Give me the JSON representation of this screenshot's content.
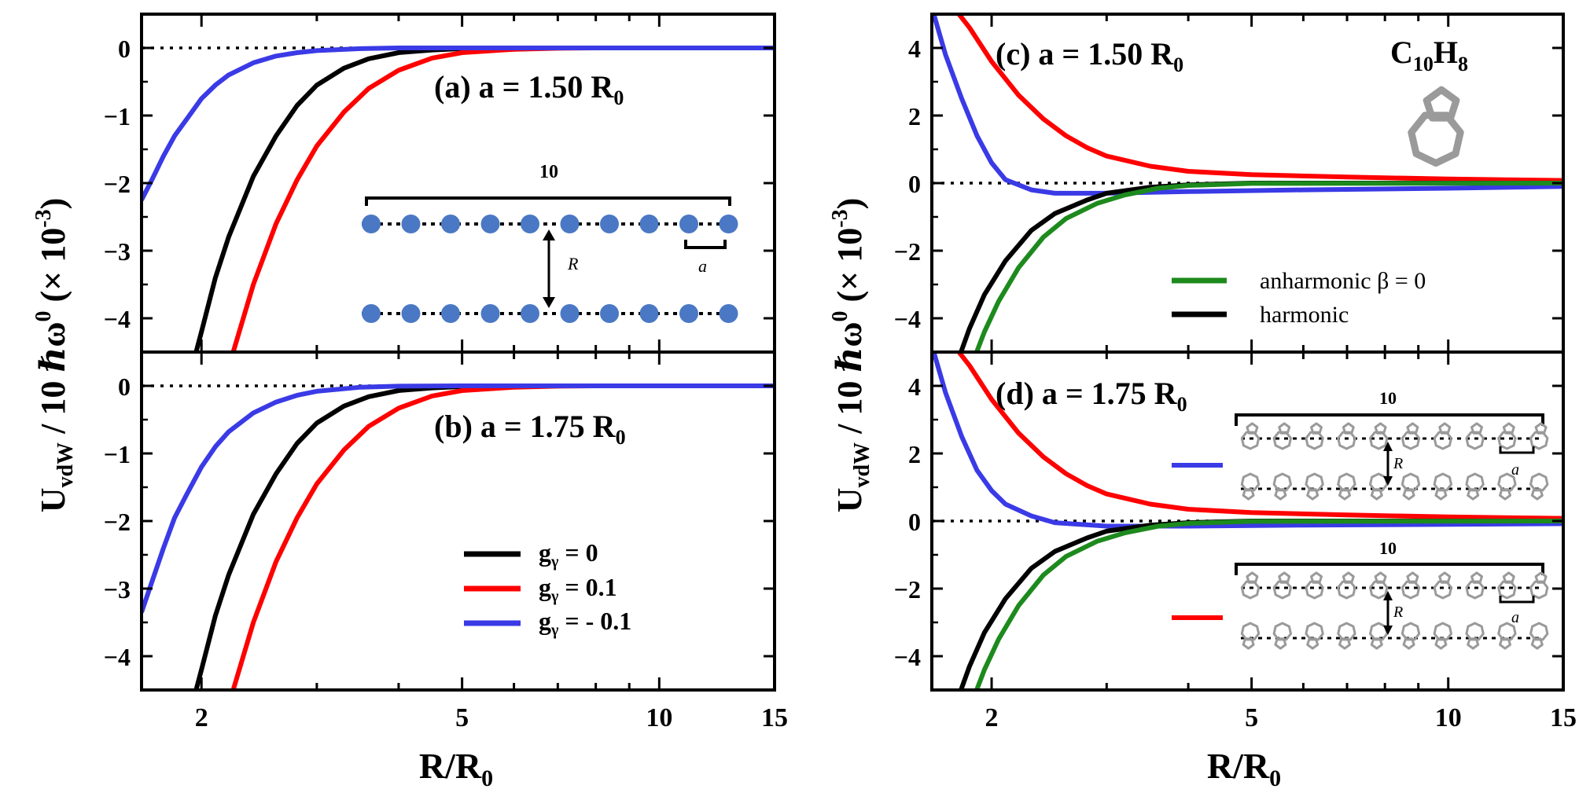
{
  "figure": {
    "y_axis_label": {
      "main": "U",
      "sub": "vdW",
      "rest": " / 10 ℏω",
      "sup0": "0",
      "scale": " (× 10",
      "sup": "-3",
      "close": ")"
    },
    "x_axis_label": {
      "main": "R/R",
      "sub": "0"
    }
  },
  "colors": {
    "black": "#000000",
    "red": "#ff0000",
    "blue": "#3a3ae6",
    "green": "#1d8a1d",
    "dot": "#4a78c4",
    "molecule": "#9a9a9a"
  },
  "chart_data": [
    {
      "id": "a",
      "type": "line",
      "x_scale": "log",
      "xlim": [
        1.62,
        15
      ],
      "ylim": [
        -4.5,
        0.5
      ],
      "yticks": [
        0,
        -1,
        -2,
        -3,
        -4
      ],
      "ytick_labels": [
        "0",
        "−1",
        "−2",
        "−3",
        "−4"
      ],
      "xticks": [
        2,
        5,
        10,
        15
      ],
      "xtick_labels": [],
      "title": {
        "main": "(a) a = 1.50 R",
        "sub": "0"
      },
      "series": [
        {
          "name": "gγ = 0",
          "color": "#000000",
          "x": [
            1.95,
            2.0,
            2.1,
            2.2,
            2.4,
            2.6,
            2.8,
            3.0,
            3.3,
            3.6,
            4.0,
            4.5,
            5.0,
            6.0,
            8.0,
            10.0,
            15.0
          ],
          "y": [
            -4.6,
            -4.2,
            -3.4,
            -2.8,
            -1.9,
            -1.3,
            -0.85,
            -0.55,
            -0.3,
            -0.16,
            -0.07,
            -0.03,
            -0.01,
            0,
            0,
            0,
            0
          ]
        },
        {
          "name": "gγ = 0.1",
          "color": "#ff0000",
          "x": [
            2.22,
            2.3,
            2.4,
            2.6,
            2.8,
            3.0,
            3.3,
            3.6,
            4.0,
            4.5,
            5.0,
            6.0,
            7.0,
            8.0,
            10.0,
            15.0
          ],
          "y": [
            -4.6,
            -4.1,
            -3.5,
            -2.6,
            -1.95,
            -1.45,
            -0.95,
            -0.6,
            -0.33,
            -0.15,
            -0.07,
            -0.02,
            -0.005,
            0,
            0,
            0
          ]
        },
        {
          "name": "gγ = -0.1",
          "color": "#3a3ae6",
          "x": [
            1.62,
            1.68,
            1.75,
            1.82,
            1.9,
            2.0,
            2.1,
            2.2,
            2.4,
            2.6,
            2.8,
            3.0,
            3.5,
            4.0,
            5.0,
            6.0,
            15.0
          ],
          "y": [
            -2.25,
            -1.95,
            -1.6,
            -1.3,
            -1.05,
            -0.75,
            -0.55,
            -0.4,
            -0.22,
            -0.12,
            -0.07,
            -0.04,
            -0.01,
            0,
            0,
            0,
            0
          ]
        }
      ]
    },
    {
      "id": "b",
      "type": "line",
      "x_scale": "log",
      "xlim": [
        1.62,
        15
      ],
      "ylim": [
        -4.5,
        0.5
      ],
      "yticks": [
        0,
        -1,
        -2,
        -3,
        -4
      ],
      "ytick_labels": [
        "0",
        "−1",
        "−2",
        "−3",
        "−4"
      ],
      "xticks": [
        2,
        5,
        10,
        15
      ],
      "xtick_labels": [
        "2",
        "5",
        "10",
        "15"
      ],
      "title": {
        "main": "(b) a = 1.75 R",
        "sub": "0"
      },
      "series": [
        {
          "name": "gγ = 0",
          "color": "#000000",
          "x": [
            1.95,
            2.0,
            2.1,
            2.2,
            2.4,
            2.6,
            2.8,
            3.0,
            3.3,
            3.6,
            4.0,
            4.5,
            5.0,
            6.0,
            8.0,
            10.0,
            15.0
          ],
          "y": [
            -4.6,
            -4.2,
            -3.4,
            -2.8,
            -1.9,
            -1.3,
            -0.85,
            -0.55,
            -0.3,
            -0.16,
            -0.07,
            -0.03,
            -0.01,
            0,
            0,
            0,
            0
          ]
        },
        {
          "name": "gγ = 0.1",
          "color": "#ff0000",
          "x": [
            2.22,
            2.3,
            2.4,
            2.6,
            2.8,
            3.0,
            3.3,
            3.6,
            4.0,
            4.5,
            5.0,
            6.0,
            7.0,
            8.0,
            10.0,
            15.0
          ],
          "y": [
            -4.6,
            -4.1,
            -3.5,
            -2.6,
            -1.95,
            -1.45,
            -0.95,
            -0.6,
            -0.33,
            -0.15,
            -0.07,
            -0.02,
            -0.005,
            0,
            0,
            0
          ]
        },
        {
          "name": "gγ = -0.1",
          "color": "#3a3ae6",
          "x": [
            1.62,
            1.68,
            1.75,
            1.82,
            1.9,
            2.0,
            2.1,
            2.2,
            2.4,
            2.6,
            2.8,
            3.0,
            3.5,
            4.0,
            5.0,
            6.0,
            15.0
          ],
          "y": [
            -3.35,
            -2.9,
            -2.4,
            -1.95,
            -1.6,
            -1.2,
            -0.9,
            -0.68,
            -0.4,
            -0.24,
            -0.14,
            -0.08,
            -0.02,
            -0.005,
            0,
            0,
            0
          ]
        }
      ],
      "legend": [
        {
          "label": "g",
          "sub": "γ",
          "value": " = 0",
          "color": "#000000"
        },
        {
          "label": "g",
          "sub": "γ",
          "value": " = 0.1",
          "color": "#ff0000"
        },
        {
          "label": "g",
          "sub": "γ",
          "value": " = - 0.1",
          "color": "#3a3ae6"
        }
      ]
    },
    {
      "id": "c",
      "type": "line",
      "x_scale": "log",
      "xlim": [
        1.62,
        15
      ],
      "ylim": [
        -5,
        5
      ],
      "yticks": [
        4,
        2,
        0,
        -2,
        -4
      ],
      "ytick_labels": [
        "4",
        "2",
        "0",
        "−2",
        "−4"
      ],
      "xticks": [
        2,
        5,
        10,
        15
      ],
      "xtick_labels": [],
      "title": {
        "main": "(c) a = 1.50 R",
        "sub": "0"
      },
      "molecule": {
        "main": "C",
        "sub1": "10",
        "mid": "H",
        "sub2": "8"
      },
      "series": [
        {
          "name": "red",
          "color": "#ff0000",
          "x": [
            1.75,
            1.85,
            2.0,
            2.2,
            2.4,
            2.6,
            2.8,
            3.0,
            3.5,
            4.0,
            5.0,
            7.0,
            10.0,
            15.0
          ],
          "y": [
            5.2,
            4.6,
            3.6,
            2.6,
            1.9,
            1.4,
            1.05,
            0.8,
            0.5,
            0.35,
            0.25,
            0.18,
            0.12,
            0.08
          ]
        },
        {
          "name": "blue",
          "color": "#3a3ae6",
          "x": [
            1.62,
            1.7,
            1.8,
            1.9,
            2.0,
            2.1,
            2.3,
            2.5,
            3.0,
            4.0,
            6.0,
            10.0,
            15.0
          ],
          "y": [
            5.2,
            3.8,
            2.5,
            1.4,
            0.6,
            0.1,
            -0.2,
            -0.3,
            -0.3,
            -0.25,
            -0.2,
            -0.15,
            -0.1
          ]
        },
        {
          "name": "harmonic",
          "color": "#000000",
          "x": [
            1.78,
            1.85,
            1.95,
            2.1,
            2.3,
            2.5,
            2.8,
            3.0,
            3.5,
            4.0,
            5.0,
            15.0
          ],
          "y": [
            -5.2,
            -4.3,
            -3.3,
            -2.3,
            -1.4,
            -0.9,
            -0.5,
            -0.3,
            -0.12,
            -0.05,
            0,
            0
          ]
        },
        {
          "name": "anharmonic β = 0",
          "color": "#1d8a1d",
          "x": [
            1.88,
            1.95,
            2.05,
            2.2,
            2.4,
            2.6,
            2.9,
            3.2,
            3.6,
            4.0,
            5.0,
            15.0
          ],
          "y": [
            -5.2,
            -4.4,
            -3.5,
            -2.5,
            -1.6,
            -1.05,
            -0.6,
            -0.35,
            -0.15,
            -0.07,
            -0.01,
            0
          ]
        }
      ],
      "legend": [
        {
          "label": "anharmonic β = 0",
          "color": "#1d8a1d"
        },
        {
          "label": "harmonic",
          "color": "#000000"
        }
      ]
    },
    {
      "id": "d",
      "type": "line",
      "x_scale": "log",
      "xlim": [
        1.62,
        15
      ],
      "ylim": [
        -5,
        5
      ],
      "yticks": [
        4,
        2,
        0,
        -2,
        -4
      ],
      "ytick_labels": [
        "4",
        "2",
        "0",
        "−2",
        "−4"
      ],
      "xticks": [
        2,
        5,
        10,
        15
      ],
      "xtick_labels": [
        "2",
        "5",
        "10",
        "15"
      ],
      "title": {
        "main": "(d) a = 1.75 R",
        "sub": "0"
      },
      "series": [
        {
          "name": "red",
          "color": "#ff0000",
          "x": [
            1.75,
            1.85,
            2.0,
            2.2,
            2.4,
            2.6,
            2.8,
            3.0,
            3.5,
            4.0,
            5.0,
            7.0,
            10.0,
            15.0
          ],
          "y": [
            5.2,
            4.6,
            3.6,
            2.6,
            1.9,
            1.4,
            1.05,
            0.8,
            0.5,
            0.35,
            0.25,
            0.18,
            0.12,
            0.08
          ]
        },
        {
          "name": "blue",
          "color": "#3a3ae6",
          "x": [
            1.62,
            1.7,
            1.8,
            1.9,
            2.0,
            2.1,
            2.3,
            2.5,
            3.0,
            4.0,
            6.0,
            10.0,
            15.0
          ],
          "y": [
            5.2,
            3.8,
            2.5,
            1.5,
            0.9,
            0.5,
            0.15,
            -0.05,
            -0.15,
            -0.15,
            -0.12,
            -0.1,
            -0.08
          ]
        },
        {
          "name": "harmonic",
          "color": "#000000",
          "x": [
            1.78,
            1.85,
            1.95,
            2.1,
            2.3,
            2.5,
            2.8,
            3.0,
            3.5,
            4.0,
            5.0,
            15.0
          ],
          "y": [
            -5.2,
            -4.3,
            -3.3,
            -2.3,
            -1.4,
            -0.9,
            -0.5,
            -0.3,
            -0.12,
            -0.05,
            0,
            0
          ]
        },
        {
          "name": "anharmonic",
          "color": "#1d8a1d",
          "x": [
            1.88,
            1.95,
            2.05,
            2.2,
            2.4,
            2.6,
            2.9,
            3.2,
            3.6,
            4.0,
            5.0,
            15.0
          ],
          "y": [
            -5.2,
            -4.4,
            -3.5,
            -2.5,
            -1.6,
            -1.05,
            -0.6,
            -0.35,
            -0.15,
            -0.07,
            -0.01,
            0
          ]
        }
      ]
    }
  ],
  "insets": {
    "chain": {
      "count_label": "10",
      "r_label": "R",
      "a_label": "a"
    },
    "d_top": {
      "count_label": "10",
      "r_label": "R",
      "a_label": "a",
      "color": "#3a3ae6"
    },
    "d_bottom": {
      "count_label": "10",
      "r_label": "R",
      "a_label": "a",
      "color": "#ff0000"
    }
  }
}
